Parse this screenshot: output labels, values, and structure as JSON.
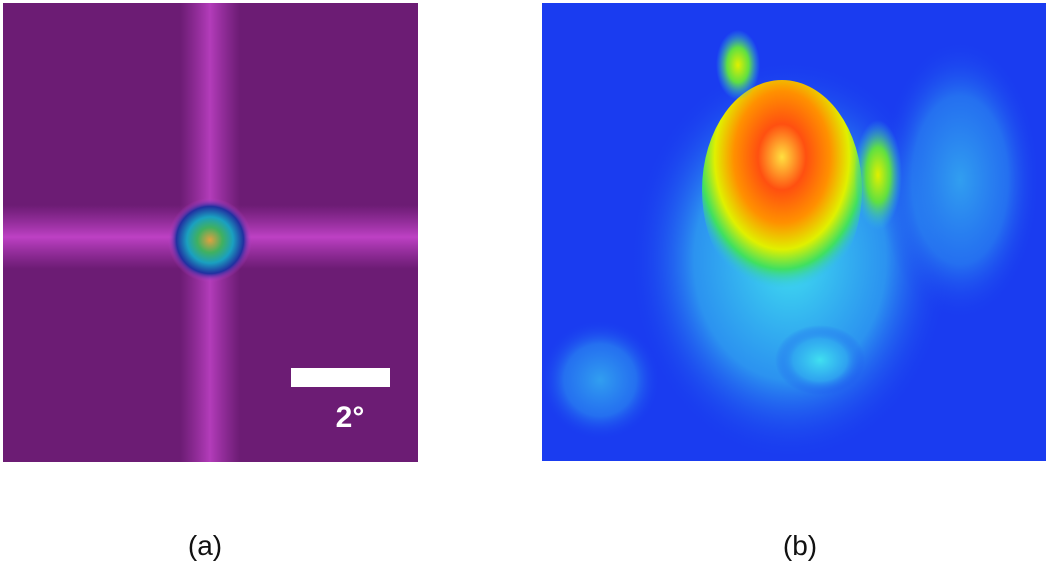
{
  "panels": [
    {
      "label": "(a)",
      "scale_bar_label": "2°"
    },
    {
      "label": "(b)"
    }
  ]
}
